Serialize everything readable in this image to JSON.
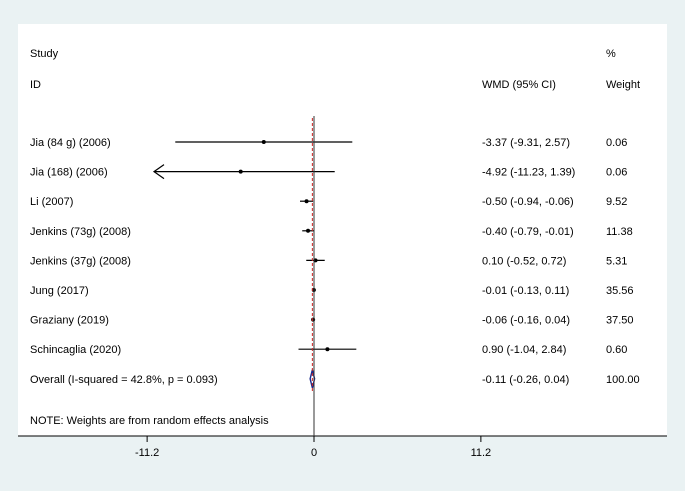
{
  "chart_data": {
    "type": "forest",
    "headers": {
      "study_top": "Study",
      "study_bottom": "ID",
      "effect": "WMD (95% CI)",
      "weight_top": "%",
      "weight_bottom": "Weight"
    },
    "studies": [
      {
        "label": "Jia (84 g) (2006)",
        "est": -3.37,
        "lo": -9.31,
        "hi": 2.57,
        "ci_text": "-3.37 (-9.31, 2.57)",
        "weight_text": "0.06",
        "arrow_left": false
      },
      {
        "label": "Jia (168) (2006)",
        "est": -4.92,
        "lo": -11.23,
        "hi": 1.39,
        "ci_text": "-4.92 (-11.23, 1.39)",
        "weight_text": "0.06",
        "arrow_left": true
      },
      {
        "label": "Li (2007)",
        "est": -0.5,
        "lo": -0.94,
        "hi": -0.06,
        "ci_text": "-0.50 (-0.94, -0.06)",
        "weight_text": "9.52",
        "arrow_left": false
      },
      {
        "label": "Jenkins (73g) (2008)",
        "est": -0.4,
        "lo": -0.79,
        "hi": -0.01,
        "ci_text": "-0.40 (-0.79, -0.01)",
        "weight_text": "11.38",
        "arrow_left": false
      },
      {
        "label": "Jenkins (37g) (2008)",
        "est": 0.1,
        "lo": -0.52,
        "hi": 0.72,
        "ci_text": "0.10 (-0.52, 0.72)",
        "weight_text": "5.31",
        "arrow_left": false
      },
      {
        "label": "Jung (2017)",
        "est": -0.01,
        "lo": -0.13,
        "hi": 0.11,
        "ci_text": "-0.01 (-0.13, 0.11)",
        "weight_text": "35.56",
        "arrow_left": false
      },
      {
        "label": "Graziany  (2019)",
        "est": -0.06,
        "lo": -0.16,
        "hi": 0.04,
        "ci_text": "-0.06 (-0.16, 0.04)",
        "weight_text": "37.50",
        "arrow_left": false
      },
      {
        "label": "Schincaglia (2020)",
        "est": 0.9,
        "lo": -1.04,
        "hi": 2.84,
        "ci_text": "0.90 (-1.04, 2.84)",
        "weight_text": "0.60",
        "arrow_left": false
      }
    ],
    "overall": {
      "label": "Overall  (I-squared = 42.8%, p = 0.093)",
      "est": -0.11,
      "lo": -0.26,
      "hi": 0.04,
      "ci_text": "-0.11 (-0.26, 0.04)",
      "weight_text": "100.00"
    },
    "note": "NOTE: Weights are from random effects analysis",
    "xaxis": {
      "range": [
        -11.2,
        11.2
      ],
      "ticks": [
        -11.2,
        0,
        11.2
      ],
      "tick_labels": [
        "-11.2",
        "0",
        "11.2"
      ]
    },
    "colors": {
      "background": "#eaf2f3",
      "panel": "#ffffff",
      "line": "#000000",
      "reference": "#cc2222",
      "diamond": "#1c2a8c"
    }
  }
}
